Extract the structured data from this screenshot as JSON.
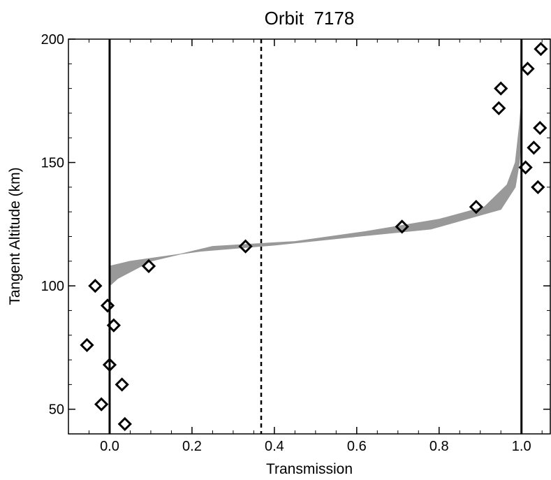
{
  "chart_data": {
    "type": "scatter",
    "title": "Orbit  7178",
    "xlabel": "Transmission",
    "ylabel": "Tangent Altitude (km)",
    "xlim": [
      -0.1,
      1.07
    ],
    "ylim": [
      40,
      200
    ],
    "xticks": [
      0.0,
      0.2,
      0.4,
      0.6,
      0.8,
      1.0
    ],
    "xtick_labels": [
      "0.0",
      "0.2",
      "0.4",
      "0.6",
      "0.8",
      "1.0"
    ],
    "yticks": [
      50,
      100,
      150,
      200
    ],
    "ytick_labels": [
      "50",
      "100",
      "150",
      "200"
    ],
    "grid": false,
    "reference_lines": [
      {
        "x": 0.0,
        "style": "solid"
      },
      {
        "x": 1.0,
        "style": "solid"
      },
      {
        "x": 0.368,
        "style": "dashed"
      }
    ],
    "band": {
      "color": "#999999",
      "left": [
        [
          0.0,
          100
        ],
        [
          0.02,
          103
        ],
        [
          0.1,
          110
        ],
        [
          0.25,
          116
        ],
        [
          0.45,
          118
        ],
        [
          0.62,
          122
        ],
        [
          0.8,
          127
        ],
        [
          0.91,
          132
        ],
        [
          0.965,
          141
        ],
        [
          0.985,
          150
        ],
        [
          0.995,
          165
        ],
        [
          1.0,
          175
        ]
      ],
      "right": [
        [
          0.0,
          108
        ],
        [
          0.05,
          110
        ],
        [
          0.22,
          114
        ],
        [
          0.4,
          116.5
        ],
        [
          0.6,
          120
        ],
        [
          0.78,
          123
        ],
        [
          0.95,
          131
        ],
        [
          0.985,
          140
        ],
        [
          0.995,
          150
        ],
        [
          1.0,
          160
        ]
      ]
    },
    "series": [
      {
        "marker": "diamond",
        "points": [
          {
            "x": 0.037,
            "y": 44
          },
          {
            "x": -0.02,
            "y": 52
          },
          {
            "x": 0.03,
            "y": 60
          },
          {
            "x": 0.0,
            "y": 68
          },
          {
            "x": -0.055,
            "y": 76
          },
          {
            "x": 0.01,
            "y": 84
          },
          {
            "x": -0.005,
            "y": 92
          },
          {
            "x": -0.035,
            "y": 100
          },
          {
            "x": 0.095,
            "y": 108
          },
          {
            "x": 0.33,
            "y": 116
          },
          {
            "x": 0.71,
            "y": 124
          },
          {
            "x": 0.89,
            "y": 132
          },
          {
            "x": 1.04,
            "y": 140
          },
          {
            "x": 1.01,
            "y": 148
          },
          {
            "x": 1.03,
            "y": 156
          },
          {
            "x": 1.045,
            "y": 164
          },
          {
            "x": 0.945,
            "y": 172
          },
          {
            "x": 0.95,
            "y": 180
          },
          {
            "x": 1.015,
            "y": 188
          },
          {
            "x": 1.047,
            "y": 196
          }
        ]
      }
    ]
  }
}
